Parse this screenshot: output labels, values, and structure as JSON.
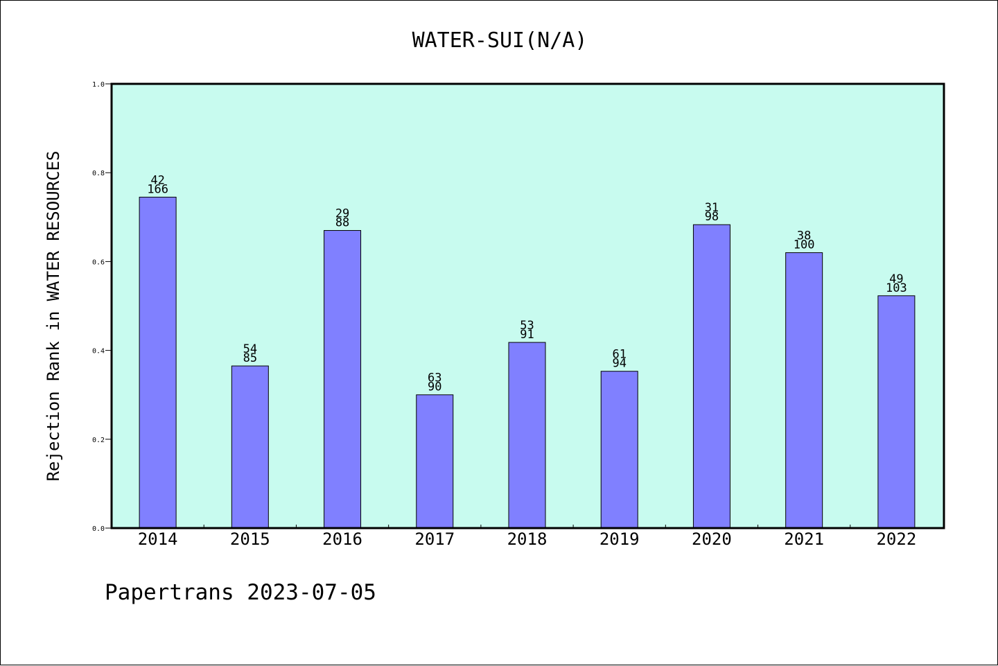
{
  "chart_data": {
    "type": "bar",
    "title": "WATER-SUI(N/A)",
    "xlabel": "",
    "ylabel": "Rejection Rank in WATER RESOURCES",
    "categories": [
      "2014",
      "2015",
      "2016",
      "2017",
      "2018",
      "2019",
      "2020",
      "2021",
      "2022"
    ],
    "values": [
      0.745,
      0.365,
      0.67,
      0.3,
      0.418,
      0.353,
      0.683,
      0.62,
      0.523
    ],
    "labels_top": [
      "42",
      "54",
      "29",
      "63",
      "53",
      "61",
      "31",
      "38",
      "49"
    ],
    "labels_bottom": [
      "166",
      "85",
      "88",
      "90",
      "91",
      "94",
      "98",
      "100",
      "103"
    ],
    "ylim": [
      0.0,
      1.0
    ],
    "yticks": [
      "0.0",
      "0.2",
      "0.4",
      "0.6",
      "0.8",
      "1.0"
    ],
    "grid": false,
    "legend": "none",
    "colors": {
      "plot_background": "#c8fbef",
      "bar_fill": "#8080ff",
      "bar_stroke": "#000000"
    }
  },
  "footer": {
    "text": "Papertrans 2023-07-05"
  }
}
